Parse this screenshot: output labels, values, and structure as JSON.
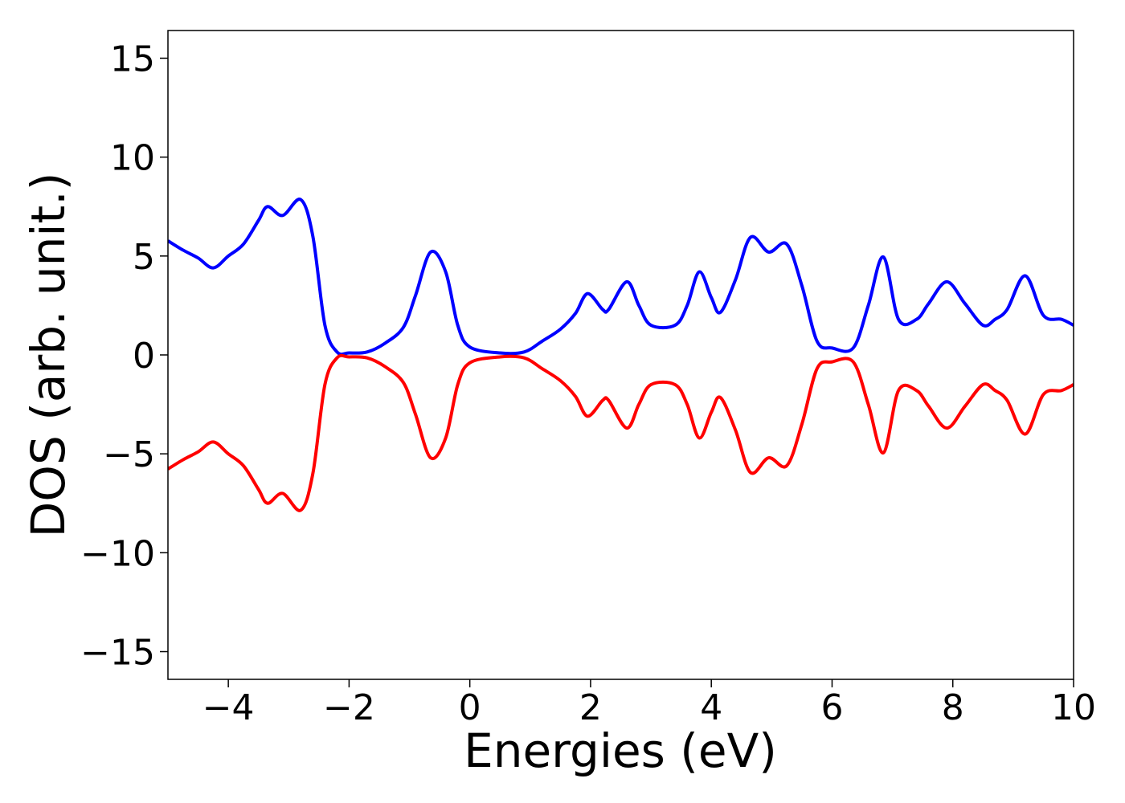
{
  "chart_data": {
    "type": "line",
    "xlabel": "Energies (eV)",
    "ylabel": "DOS (arb. unit.)",
    "x": [
      -5,
      -4.75,
      -4.5,
      -4.25,
      -4,
      -3.75,
      -3.5,
      -3.35,
      -3.1,
      -2.8,
      -2.6,
      -2.4,
      -2.2,
      -2,
      -1.7,
      -1.4,
      -1.1,
      -0.9,
      -0.65,
      -0.4,
      -0.2,
      0,
      0.5,
      0.9,
      1.2,
      1.5,
      1.75,
      1.95,
      2.2,
      2.3,
      2.6,
      2.8,
      3,
      3.4,
      3.6,
      3.8,
      4,
      4.15,
      4.4,
      4.65,
      4.95,
      5.25,
      5.5,
      5.75,
      6,
      6.35,
      6.6,
      6.85,
      7.1,
      7.4,
      7.6,
      7.9,
      8.2,
      8.5,
      8.7,
      8.9,
      9.2,
      9.5,
      9.8,
      10
    ],
    "series": [
      {
        "color": "#0000ff",
        "values": [
          5.77,
          5.3,
          4.9,
          4.4,
          5.0,
          5.6,
          6.8,
          7.5,
          7.05,
          7.85,
          6.0,
          1.5,
          0.15,
          0.1,
          0.15,
          0.6,
          1.4,
          3.0,
          5.2,
          4.2,
          1.5,
          0.4,
          0.1,
          0.15,
          0.7,
          1.3,
          2.1,
          3.1,
          2.3,
          2.3,
          3.7,
          2.5,
          1.5,
          1.5,
          2.5,
          4.2,
          2.9,
          2.15,
          3.8,
          5.95,
          5.2,
          5.6,
          3.5,
          0.7,
          0.35,
          0.35,
          2.5,
          4.95,
          1.8,
          1.8,
          2.6,
          3.7,
          2.6,
          1.5,
          1.8,
          2.3,
          4.0,
          2.0,
          1.8,
          1.5
        ]
      },
      {
        "color": "#ff0000",
        "values": [
          -5.77,
          -5.3,
          -4.9,
          -4.4,
          -5.0,
          -5.6,
          -6.8,
          -7.5,
          -7.0,
          -7.85,
          -6.0,
          -1.5,
          -0.15,
          -0.1,
          -0.15,
          -0.6,
          -1.4,
          -3.0,
          -5.2,
          -4.2,
          -1.5,
          -0.4,
          -0.1,
          -0.15,
          -0.7,
          -1.3,
          -2.1,
          -3.1,
          -2.3,
          -2.3,
          -3.7,
          -2.5,
          -1.5,
          -1.5,
          -2.5,
          -4.2,
          -2.9,
          -2.15,
          -3.8,
          -5.95,
          -5.2,
          -5.6,
          -3.5,
          -0.7,
          -0.35,
          -0.35,
          -2.5,
          -4.95,
          -1.8,
          -1.8,
          -2.6,
          -3.7,
          -2.6,
          -1.5,
          -1.8,
          -2.3,
          -4.0,
          -2.0,
          -1.8,
          -1.5
        ]
      }
    ],
    "xlim": [
      -5,
      10
    ],
    "xticks": [
      {
        "value": -4,
        "label": "−4"
      },
      {
        "value": -2,
        "label": "−2"
      },
      0,
      2,
      4,
      6,
      8,
      10
    ],
    "ylim": [
      -16.4,
      16.4
    ],
    "yticks": [
      {
        "value": -15,
        "label": "−15"
      },
      {
        "value": -10,
        "label": "−10"
      },
      {
        "value": -5,
        "label": "−5"
      },
      0,
      5,
      10,
      15
    ],
    "grid": false
  }
}
